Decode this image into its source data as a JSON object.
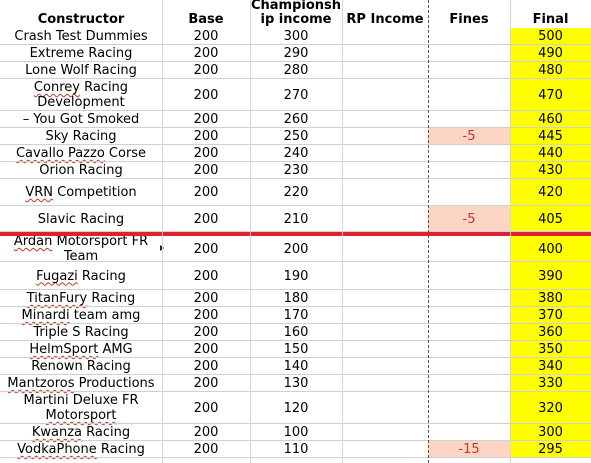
{
  "headers": {
    "constructor": "Constructor",
    "base": "Base",
    "championship": "Championship income",
    "rp": "RP Income",
    "fines": "Fines",
    "final": "Final"
  },
  "rows": [
    {
      "constructor": "Crash Test Dummies",
      "base": "200",
      "champ": "300",
      "fines": "",
      "final": "500"
    },
    {
      "constructor": "Extreme Racing",
      "base": "200",
      "champ": "290",
      "fines": "",
      "final": "490"
    },
    {
      "constructor": "Lone Wolf Racing",
      "base": "200",
      "champ": "280",
      "fines": "",
      "final": "480"
    },
    {
      "constructor": "Conrey Racing Development",
      "base": "200",
      "champ": "270",
      "fines": "",
      "final": "470"
    },
    {
      "constructor": "– You Got Smoked",
      "base": "200",
      "champ": "260",
      "fines": "",
      "final": "460"
    },
    {
      "constructor": "Sky Racing",
      "base": "200",
      "champ": "250",
      "fines": "-5",
      "final": "445"
    },
    {
      "constructor": "Cavallo Pazzo Corse",
      "base": "200",
      "champ": "240",
      "fines": "",
      "final": "440"
    },
    {
      "constructor": "Orion Racing",
      "base": "200",
      "champ": "230",
      "fines": "",
      "final": "430"
    },
    {
      "constructor": "VRN Competition",
      "base": "200",
      "champ": "220",
      "fines": "",
      "final": "420"
    },
    {
      "constructor": "Slavic Racing",
      "base": "200",
      "champ": "210",
      "fines": "-5",
      "final": "405"
    },
    {
      "constructor": "Ardan Motorsport FR Team",
      "base": "200",
      "champ": "200",
      "fines": "",
      "final": "400"
    },
    {
      "constructor": "Fugazi Racing",
      "base": "200",
      "champ": "190",
      "fines": "",
      "final": "390"
    },
    {
      "constructor": "TitanFury Racing",
      "base": "200",
      "champ": "180",
      "fines": "",
      "final": "380"
    },
    {
      "constructor": "Minardi team amg",
      "base": "200",
      "champ": "170",
      "fines": "",
      "final": "370"
    },
    {
      "constructor": "Triple S Racing",
      "base": "200",
      "champ": "160",
      "fines": "",
      "final": "360"
    },
    {
      "constructor": "HelmSport AMG",
      "base": "200",
      "champ": "150",
      "fines": "",
      "final": "350"
    },
    {
      "constructor": "Renown Racing",
      "base": "200",
      "champ": "140",
      "fines": "",
      "final": "340"
    },
    {
      "constructor": "Mantzoros Productions",
      "base": "200",
      "champ": "130",
      "fines": "",
      "final": "330"
    },
    {
      "constructor": "Martini Deluxe FR Motorsport",
      "base": "200",
      "champ": "120",
      "fines": "",
      "final": "320"
    },
    {
      "constructor": "Kwanza Racing",
      "base": "200",
      "champ": "100",
      "fines": "",
      "final": "300"
    },
    {
      "constructor": "VodkaPhone Racing",
      "base": "200",
      "champ": "110",
      "fines": "-15",
      "final": "295"
    }
  ],
  "colors": {
    "final_highlight": "#ffff00",
    "fine_highlight": "#fcd5c4",
    "fine_text": "#c0382b",
    "separator": "#e0202a"
  }
}
